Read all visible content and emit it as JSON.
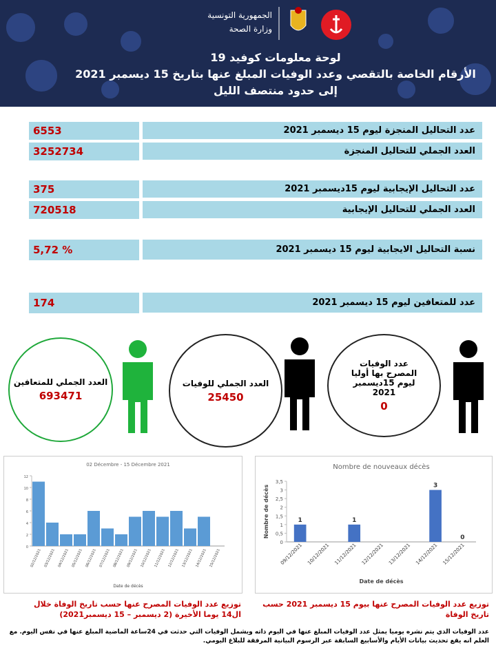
{
  "header": {
    "republic": "الجمهورية التونسية",
    "ministry": "وزارة الصحة",
    "title": "لوحة معلومات كوفيد 19",
    "subtitle": "الأرقام الخاصة بالتقصي وعدد الوفيات المبلغ عنها بتاريخ 15 ديسمبر 2021",
    "note": "إلى حدود منتصف الليل"
  },
  "rows": [
    {
      "label": "عدد التحاليل المنجزة ليوم 15 ديسمبر 2021",
      "value": "6553"
    },
    {
      "label": "العدد الجملي للتحاليل المنجزة",
      "value": "3252734"
    },
    {
      "label": "عدد التحاليل الإيجابية ليوم 15ديسمبر 2021",
      "value": "375"
    },
    {
      "label": "العدد الجملي للتحاليل الإيجابية",
      "value": "720518"
    },
    {
      "label": "نسبة التحاليل الايجابية ليوم 15 ديسمبر 2021",
      "value": "5,72 %"
    },
    {
      "label": "عدد للمتعافين ليوم 15 ديسمبر 2021",
      "value": "174"
    }
  ],
  "circles": [
    {
      "label": "العدد الجملي للمتعافين",
      "value": "693471"
    },
    {
      "label": "العدد الجملي للوفيات",
      "value": "25450"
    },
    {
      "label": "عدد الوفيات المصرح بها أوليا ليوم 15ديسمبر 2021",
      "value": "0"
    }
  ],
  "chart_data": [
    {
      "type": "bar",
      "title": "02 Décembre - 15 Décembre 2021",
      "x_label": "Date de décès",
      "color": "#5b9bd5",
      "categories": [
        "02/12/2021",
        "03/12/2021",
        "04/12/2021",
        "05/12/2021",
        "06/12/2021",
        "07/12/2021",
        "08/12/2021",
        "09/12/2021",
        "10/12/2021",
        "11/12/2021",
        "12/12/2021",
        "13/12/2021",
        "14/12/2021",
        "15/12/2021"
      ],
      "values": [
        11,
        4,
        2,
        2,
        6,
        3,
        2,
        5,
        6,
        5,
        6,
        3,
        5,
        0
      ],
      "ylim": [
        0,
        12
      ],
      "yticks": [
        0,
        2,
        4,
        6,
        8,
        10,
        12
      ],
      "data_labels": false
    },
    {
      "type": "bar",
      "title": "Nombre de nouveaux décès",
      "x_label": "Date de décès",
      "y_label": "Nombre de décès",
      "color": "#4472c4",
      "categories": [
        "09/12/2021",
        "10/12/2021",
        "11/12/2021",
        "12/12/2021",
        "13/12/2021",
        "14/12/2021",
        "15/12/2021"
      ],
      "values": [
        1,
        null,
        1,
        null,
        null,
        3,
        0
      ],
      "ylim": [
        0,
        3.5
      ],
      "yticks": [
        0,
        {
          "value": 0.5,
          "label": "0,5"
        },
        1,
        {
          "value": 1.5,
          "label": "1,5"
        },
        2,
        {
          "value": 2.5,
          "label": "2,5"
        },
        3,
        {
          "value": 3.5,
          "label": "3,5"
        }
      ],
      "data_labels": true
    }
  ],
  "captions": [
    "توزيع عدد الوفيات المصرح عنها حسب تاريخ الوفاة خلال ال14 يوما الأخيرة (2 ديسمبر – 15 ديسمبر2021)",
    "توزيع عدد الوفيات المصرح عنها بيوم 15 ديسمبر 2021 حسب تاريخ الوفاة"
  ],
  "footnote": "عدد الوفيات الذي يتم نشره يوميا يمثل عدد الوفيات المبلغ عنها في اليوم ذاته ويشمل الوفيات التي حدثت في 24ساعة الماضية المبلغ عنها في نفس اليوم. مع العلم انه يقع تحديث بيانات الأيام والأسابيع السابقة عبر الرسوم البيانية المرفقة للبلاغ اليومي."
}
